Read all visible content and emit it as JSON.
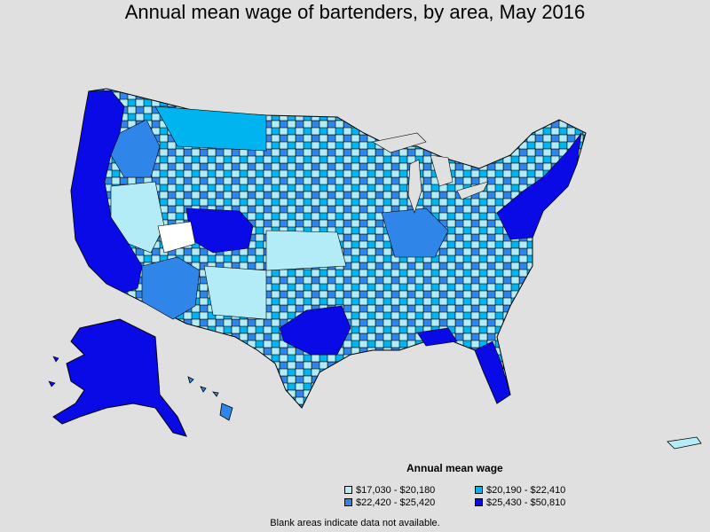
{
  "title": "Annual mean wage of bartenders, by area, May 2016",
  "legend": {
    "title": "Annual mean wage",
    "items": [
      {
        "label": "$17,030 - $20,180",
        "color": "#b3ecf7"
      },
      {
        "label": "$20,190 - $22,410",
        "color": "#00b4f0"
      },
      {
        "label": "$22,420 - $25,420",
        "color": "#2f86e8"
      },
      {
        "label": "$25,430 - $50,810",
        "color": "#0a0ae6"
      }
    ]
  },
  "footnote": "Blank areas indicate data not available.",
  "colors": {
    "background": "#e0e0e0",
    "no_data": "#ffffff",
    "border": "#000000"
  }
}
